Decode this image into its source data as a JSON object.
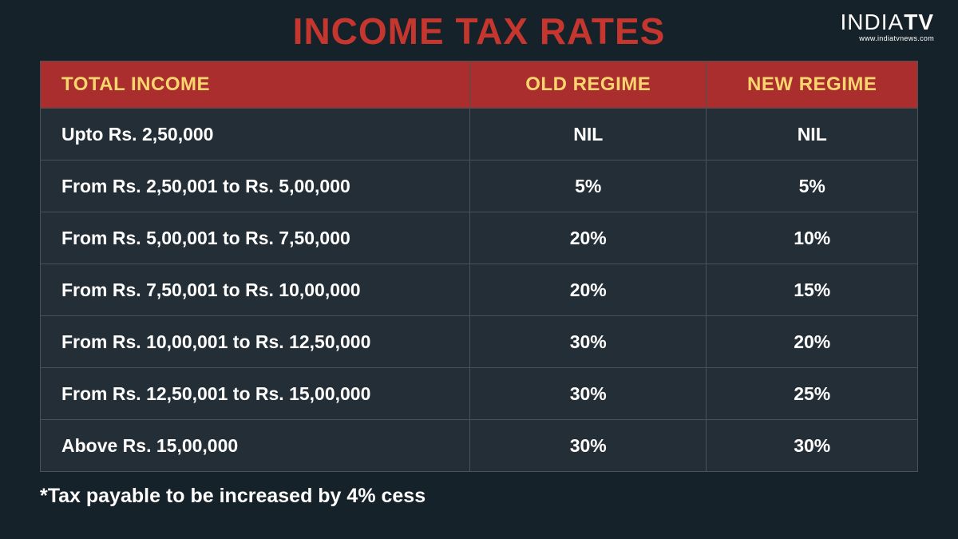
{
  "title": "INCOME TAX RATES",
  "logo": {
    "brand_thin": "INDIA",
    "brand_bold": "TV",
    "url": "www.indiatvnews.com"
  },
  "table": {
    "type": "table",
    "background_color": "#232e36",
    "header_bg": "#aa2e2e",
    "header_text_color": "#f9d56e",
    "cell_text_color": "#ffffff",
    "border_color": "#4a5258",
    "header_fontsize": 24,
    "cell_fontsize": 23,
    "columns": [
      {
        "key": "income",
        "label": "TOTAL INCOME",
        "width_pct": 49,
        "align": "left"
      },
      {
        "key": "old",
        "label": "OLD REGIME",
        "width_pct": 27,
        "align": "center"
      },
      {
        "key": "new",
        "label": "NEW REGIME",
        "width_pct": 24,
        "align": "center"
      }
    ],
    "rows": [
      {
        "income": "Upto Rs. 2,50,000",
        "old": "NIL",
        "new": "NIL"
      },
      {
        "income": "From Rs. 2,50,001 to Rs. 5,00,000",
        "old": "5%",
        "new": "5%"
      },
      {
        "income": "From Rs. 5,00,001 to Rs. 7,50,000",
        "old": "20%",
        "new": "10%"
      },
      {
        "income": "From Rs. 7,50,001 to Rs. 10,00,000",
        "old": "20%",
        "new": "15%"
      },
      {
        "income": "From Rs. 10,00,001 to Rs. 12,50,000",
        "old": "30%",
        "new": "20%"
      },
      {
        "income": "From Rs. 12,50,001 to Rs. 15,00,000",
        "old": "30%",
        "new": "25%"
      },
      {
        "income": "Above Rs. 15,00,000",
        "old": "30%",
        "new": "30%"
      }
    ]
  },
  "footnote": "*Tax payable to be increased by 4% cess",
  "page_bg": "#16222a",
  "title_color": "#c5362f",
  "title_fontsize": 46
}
